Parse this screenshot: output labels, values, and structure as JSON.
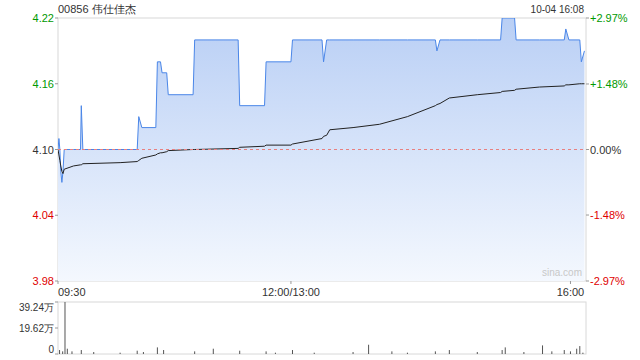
{
  "chart_data": [
    {
      "type": "line",
      "title": "00856 伟仕佳杰",
      "subtitle": "10-04 16:08",
      "annotations": [
        "sina.com"
      ],
      "x": [
        0,
        0.6,
        1.2,
        1.8,
        2.5,
        3.2,
        4,
        10,
        14.5,
        15,
        16,
        40,
        51,
        52,
        54,
        63,
        64,
        66,
        67,
        70,
        71,
        87,
        88,
        116,
        117,
        133,
        134,
        150,
        151,
        170,
        171,
        173,
        175,
        190,
        207,
        225,
        243,
        244,
        246,
        252,
        270,
        285,
        286,
        294,
        295,
        310,
        326,
        327,
        329,
        336,
        337,
        339
      ],
      "xlim": [
        0,
        340
      ],
      "xticks": [
        {
          "value": 0,
          "label": "09:30"
        },
        {
          "value": 150,
          "label": "12:00/13:00"
        },
        {
          "value": 330,
          "label": "16:00"
        }
      ],
      "ylim": [
        3.98,
        4.22
      ],
      "yticks": [
        4.22,
        4.16,
        {
          "value": 4.1,
          "label": "4.10"
        },
        4.04,
        3.98
      ],
      "y2lim": [
        -2.97,
        2.97
      ],
      "y2ticks": [
        {
          "value": 2.97,
          "label": "+2.97%"
        },
        {
          "value": 1.48,
          "label": "+1.48%"
        },
        {
          "value": 0,
          "label": "0.00%"
        },
        {
          "value": -1.48,
          "label": "-1.48%"
        },
        {
          "value": -2.97,
          "label": "-2.97%"
        }
      ],
      "baseline": 4.1,
      "grid": false,
      "series": [
        {
          "type": "area",
          "color": "#4a86e8",
          "values": [
            4.1,
            4.11,
            4.1,
            4.08,
            4.07,
            4.08,
            4.1,
            4.1,
            4.1,
            4.14,
            4.1,
            4.1,
            4.1,
            4.13,
            4.12,
            4.12,
            4.18,
            4.18,
            4.17,
            4.17,
            4.15,
            4.15,
            4.2,
            4.2,
            4.14,
            4.14,
            4.18,
            4.18,
            4.2,
            4.2,
            4.18,
            4.2,
            4.2,
            4.2,
            4.2,
            4.2,
            4.2,
            4.19,
            4.2,
            4.2,
            4.2,
            4.2,
            4.22,
            4.22,
            4.2,
            4.2,
            4.2,
            4.21,
            4.2,
            4.2,
            4.18,
            4.19
          ]
        },
        {
          "type": "line",
          "color": "#222222",
          "values": [
            4.1,
            4.095,
            4.09,
            4.085,
            4.08,
            4.078,
            4.082,
            4.085,
            4.086,
            4.086,
            4.087,
            4.088,
            4.089,
            4.09,
            4.092,
            4.095,
            4.096,
            4.097,
            4.097,
            4.098,
            4.099,
            4.1,
            4.1,
            4.101,
            4.102,
            4.103,
            4.104,
            4.104,
            4.105,
            4.11,
            4.112,
            4.113,
            4.118,
            4.12,
            4.123,
            4.13,
            4.14,
            4.141,
            4.142,
            4.147,
            4.15,
            4.152,
            4.153,
            4.154,
            4.155,
            4.157,
            4.158,
            4.159,
            4.159,
            4.16,
            4.16,
            4.16
          ]
        }
      ]
    },
    {
      "type": "bar",
      "x": [
        1,
        3,
        4.5,
        6,
        9,
        15,
        23,
        40,
        51,
        55,
        64,
        68,
        88,
        100,
        117,
        134,
        140,
        151,
        165,
        190,
        200,
        215,
        225,
        243,
        252,
        270,
        286,
        288,
        300,
        312,
        318,
        326,
        330,
        334,
        336,
        338
      ],
      "values": [
        3,
        2,
        39.24,
        4,
        2,
        3,
        1.5,
        1,
        2.5,
        1.5,
        5,
        3,
        2,
        4,
        2.5,
        2,
        1,
        3,
        1,
        1.5,
        7,
        2,
        1,
        2,
        3,
        1.5,
        3,
        5,
        1.5,
        6.5,
        2,
        3,
        2,
        4,
        6,
        1
      ],
      "xlim": [
        0,
        340
      ],
      "ylim": [
        0,
        39.24
      ],
      "yticks": [
        {
          "value": 39.24,
          "label": "39.24万"
        },
        {
          "value": 19.62,
          "label": "19.62万"
        },
        0
      ],
      "tick_labels": "y",
      "color": "#555555"
    }
  ]
}
